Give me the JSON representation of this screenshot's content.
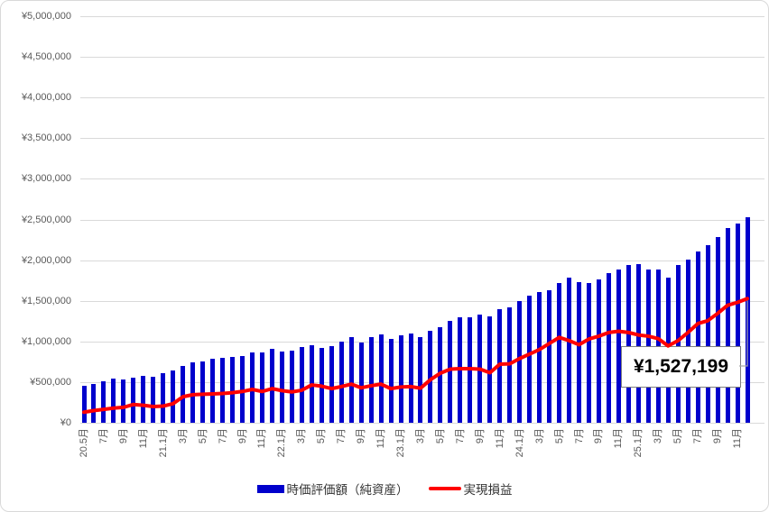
{
  "colors": {
    "background": "#FFFFFF",
    "gridline": "#D9D9D9",
    "axis_text": "#595959",
    "legend_text": "#333333",
    "callout_border": "#7F7F7F",
    "callout_text": "#000000",
    "bar_blue": "#0000CC",
    "line_red": "#FF0000"
  },
  "chart_data": {
    "type": "bar+line",
    "title": "",
    "xlabel": "",
    "ylabel": "",
    "ylim": [
      0,
      5000000
    ],
    "y_tick_step": 500000,
    "grid": "horizontal",
    "legend_position": "bottom",
    "y_tick_labels": [
      "¥5,000,000",
      "¥4,500,000",
      "¥4,000,000",
      "¥3,500,000",
      "¥3,000,000",
      "¥2,500,000",
      "¥2,000,000",
      "¥1,500,000",
      "¥1,000,000",
      "¥500,000",
      "¥0"
    ],
    "x_tick_every": 2,
    "x_tick_labels": [
      "20.5月",
      "7月",
      "9月",
      "11月",
      "21.1月",
      "3月",
      "5月",
      "7月",
      "9月",
      "11月",
      "22.1月",
      "3月",
      "5月",
      "7月",
      "9月",
      "11月",
      "23.1月",
      "3月",
      "5月",
      "7月",
      "9月",
      "11月",
      "24.1月",
      "3月",
      "5月",
      "7月",
      "9月",
      "11月",
      "25.1月",
      "3月",
      "5月",
      "7月",
      "9月",
      "11月"
    ],
    "series": [
      {
        "name": "時価評価額（純資産）",
        "type": "bar",
        "color": "#0000CC",
        "values": [
          450000,
          480000,
          505000,
          540000,
          535000,
          550000,
          580000,
          565000,
          610000,
          645000,
          700000,
          745000,
          755000,
          790000,
          800000,
          810000,
          820000,
          865000,
          865000,
          910000,
          880000,
          890000,
          935000,
          955000,
          920000,
          945000,
          1000000,
          1055000,
          990000,
          1055000,
          1090000,
          1035000,
          1075000,
          1100000,
          1055000,
          1135000,
          1180000,
          1255000,
          1300000,
          1300000,
          1335000,
          1310000,
          1400000,
          1420000,
          1500000,
          1565000,
          1610000,
          1635000,
          1720000,
          1790000,
          1735000,
          1720000,
          1765000,
          1845000,
          1880000,
          1945000,
          1950000,
          1890000,
          1880000,
          1790000,
          1935000,
          2010000,
          2110000,
          2180000,
          2280000,
          2400000,
          2445000,
          2530000
        ]
      },
      {
        "name": "実現損益",
        "type": "line",
        "color": "#FF0000",
        "values": [
          130000,
          150000,
          165000,
          180000,
          190000,
          225000,
          215000,
          200000,
          205000,
          235000,
          320000,
          345000,
          350000,
          355000,
          360000,
          370000,
          385000,
          410000,
          385000,
          420000,
          395000,
          380000,
          400000,
          465000,
          450000,
          420000,
          445000,
          475000,
          430000,
          455000,
          475000,
          420000,
          440000,
          445000,
          425000,
          530000,
          610000,
          660000,
          665000,
          665000,
          660000,
          615000,
          720000,
          725000,
          790000,
          845000,
          900000,
          975000,
          1050000,
          1010000,
          960000,
          1030000,
          1065000,
          1110000,
          1125000,
          1110000,
          1080000,
          1065000,
          1035000,
          945000,
          1010000,
          1110000,
          1220000,
          1255000,
          1345000,
          1445000,
          1480000,
          1527199
        ]
      }
    ],
    "annotation": {
      "text": "¥1,527,199",
      "value": 1527199,
      "series": "実現損益",
      "point_index": 67
    }
  }
}
